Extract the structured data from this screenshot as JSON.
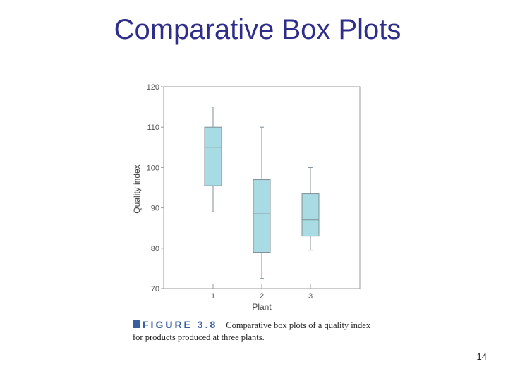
{
  "slide": {
    "title": "Comparative Box Plots",
    "page_number": "14"
  },
  "caption": {
    "figure_label": "FIGURE 3.8",
    "text": "Comparative box plots of a quality index for products produced at three plants."
  },
  "chart_data": {
    "type": "boxplot",
    "xlabel": "Plant",
    "ylabel": "Quality index",
    "ylim": [
      70,
      120
    ],
    "yticks": [
      70,
      80,
      90,
      100,
      110,
      120
    ],
    "grid": false,
    "box_color": "#a8dbe3",
    "box_edge_color": "#7f8f96",
    "boxes": [
      {
        "category": "1",
        "whisker_low": 89,
        "q1": 95.5,
        "median": 105,
        "q3": 110,
        "whisker_high": 115
      },
      {
        "category": "2",
        "whisker_low": 72.5,
        "q1": 79,
        "median": 88.5,
        "q3": 97,
        "whisker_high": 110
      },
      {
        "category": "3",
        "whisker_low": 79.5,
        "q1": 83,
        "median": 87,
        "q3": 93.5,
        "whisker_high": 100
      }
    ]
  }
}
